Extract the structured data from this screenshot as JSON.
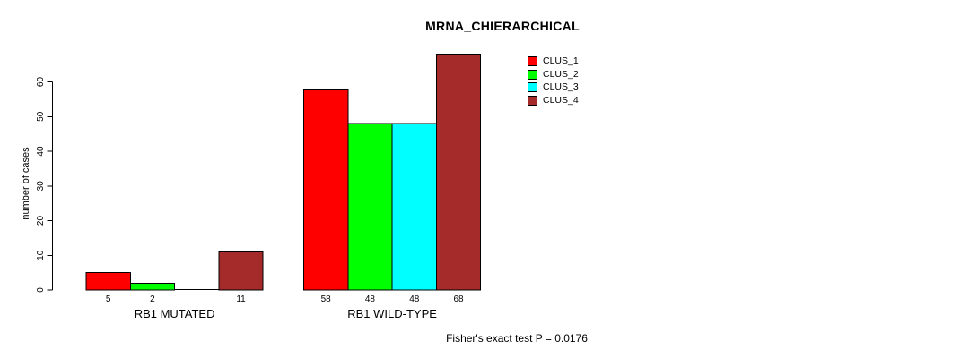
{
  "chart_data": {
    "type": "bar",
    "title": "MRNA_CHIERARCHICAL",
    "ylabel": "number of cases",
    "xlabel": "",
    "ylim": [
      0,
      60
    ],
    "yticks": [
      "0",
      "10",
      "20",
      "30",
      "40",
      "50",
      "60"
    ],
    "categories": [
      "RB1 MUTATED",
      "RB1 WILD-TYPE"
    ],
    "series": [
      {
        "name": "CLUS_1",
        "color": "#FF0000",
        "values": [
          5,
          58
        ]
      },
      {
        "name": "CLUS_2",
        "color": "#00FF00",
        "values": [
          2,
          48
        ]
      },
      {
        "name": "CLUS_3",
        "color": "#00FFFF",
        "values": [
          0,
          48
        ]
      },
      {
        "name": "CLUS_4",
        "color": "#A52A2A",
        "values": [
          11,
          68
        ]
      }
    ],
    "bar_labels": [
      [
        "5",
        "2",
        "",
        "11"
      ],
      [
        "58",
        "48",
        "48",
        "68"
      ]
    ],
    "legend_position": "top-right",
    "grid": false,
    "annotation": "Fisher's exact test P = 0.0176"
  }
}
